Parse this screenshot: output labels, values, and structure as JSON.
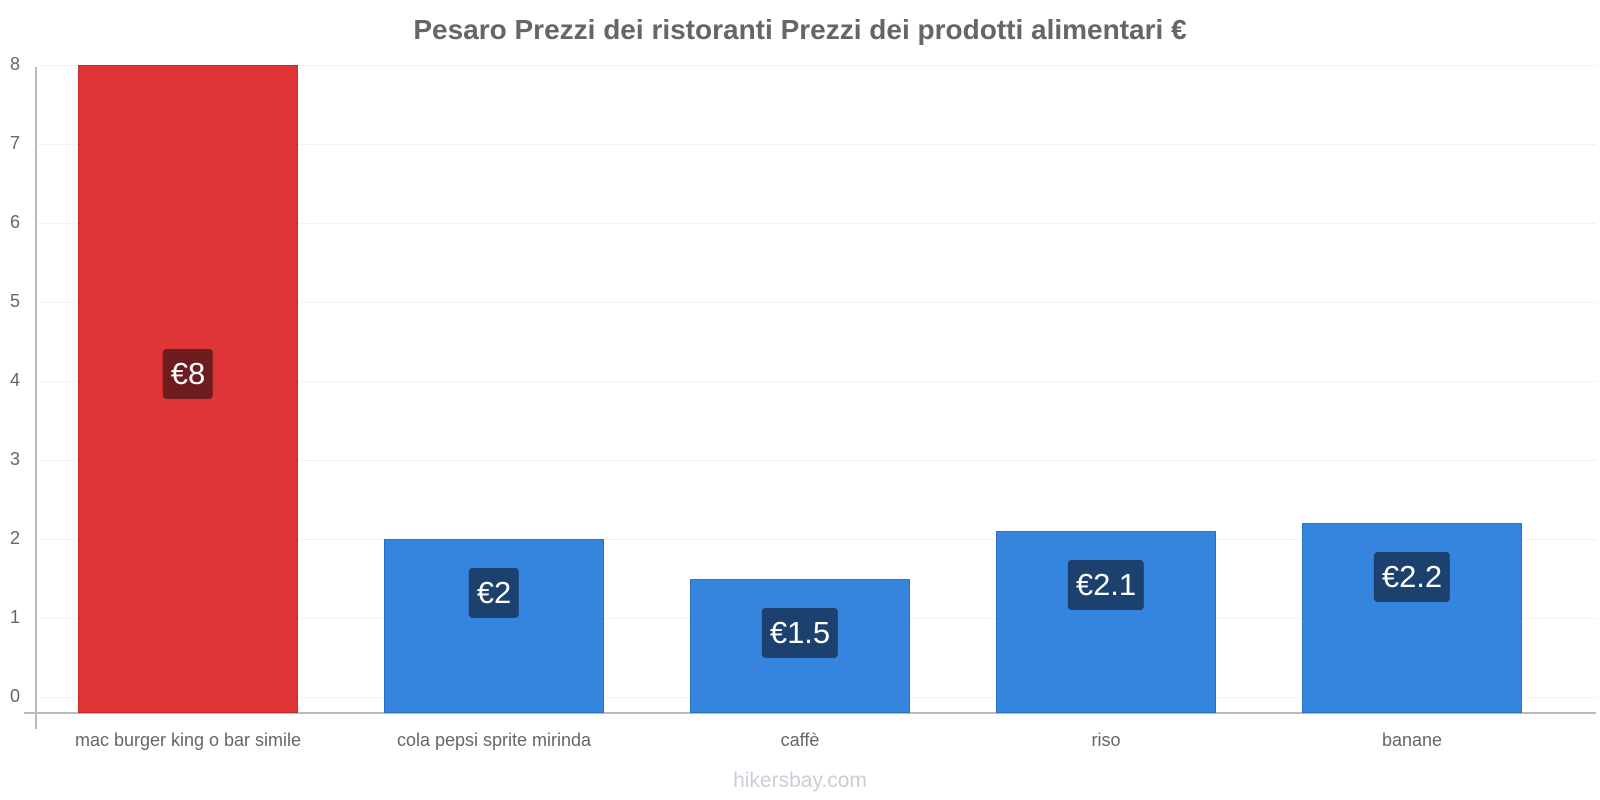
{
  "title": "Pesaro Prezzi dei ristoranti Prezzi dei prodotti alimentari €",
  "watermark": "hikersbay.com",
  "colors": {
    "highlight": "#e03536",
    "highlight_label": "#6e1c1d",
    "bar": "#3584de",
    "bar_label": "#1c416f",
    "text": "#666666"
  },
  "y_ticks": [
    "0",
    "1",
    "2",
    "3",
    "4",
    "5",
    "6",
    "7",
    "8"
  ],
  "bars": [
    {
      "category": "mac burger king o bar simile",
      "value": 8,
      "label": "€8",
      "color": "red"
    },
    {
      "category": "cola pepsi sprite mirinda",
      "value": 2,
      "label": "€2",
      "color": "blue"
    },
    {
      "category": "caffè",
      "value": 1.5,
      "label": "€1.5",
      "color": "blue"
    },
    {
      "category": "riso",
      "value": 2.1,
      "label": "€2.1",
      "color": "blue"
    },
    {
      "category": "banane",
      "value": 2.2,
      "label": "€2.2",
      "color": "blue"
    }
  ],
  "chart_data": {
    "type": "bar",
    "title": "Pesaro Prezzi dei ristoranti Prezzi dei prodotti alimentari €",
    "categories": [
      "mac burger king o bar simile",
      "cola pepsi sprite mirinda",
      "caffè",
      "riso",
      "banane"
    ],
    "values": [
      8,
      2,
      1.5,
      2.1,
      2.2
    ],
    "value_labels": [
      "€8",
      "€2",
      "€1.5",
      "€2.1",
      "€2.2"
    ],
    "xlabel": "",
    "ylabel": "",
    "ylim": [
      0,
      8
    ],
    "yticks": [
      0,
      1,
      2,
      3,
      4,
      5,
      6,
      7,
      8
    ],
    "grid": true,
    "legend": "none"
  }
}
